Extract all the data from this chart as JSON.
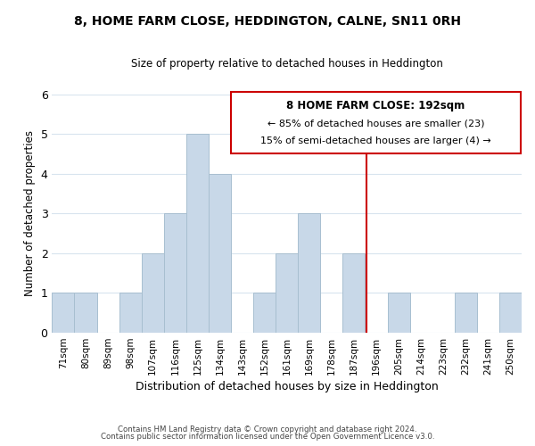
{
  "title": "8, HOME FARM CLOSE, HEDDINGTON, CALNE, SN11 0RH",
  "subtitle": "Size of property relative to detached houses in Heddington",
  "xlabel": "Distribution of detached houses by size in Heddington",
  "ylabel": "Number of detached properties",
  "bin_labels": [
    "71sqm",
    "80sqm",
    "89sqm",
    "98sqm",
    "107sqm",
    "116sqm",
    "125sqm",
    "134sqm",
    "143sqm",
    "152sqm",
    "161sqm",
    "169sqm",
    "178sqm",
    "187sqm",
    "196sqm",
    "205sqm",
    "214sqm",
    "223sqm",
    "232sqm",
    "241sqm",
    "250sqm"
  ],
  "bar_heights": [
    1,
    1,
    0,
    1,
    2,
    3,
    5,
    4,
    0,
    1,
    2,
    3,
    0,
    2,
    0,
    1,
    0,
    0,
    1,
    0,
    1
  ],
  "bar_color": "#c8d8e8",
  "bar_edge_color": "#a8bfd0",
  "reference_line_label": "8 HOME FARM CLOSE: 192sqm",
  "annotation_line1": "← 85% of detached houses are smaller (23)",
  "annotation_line2": "15% of semi-detached houses are larger (4) →",
  "ylim": [
    0,
    6
  ],
  "yticks": [
    0,
    1,
    2,
    3,
    4,
    5,
    6
  ],
  "footer_line1": "Contains HM Land Registry data © Crown copyright and database right 2024.",
  "footer_line2": "Contains public sector information licensed under the Open Government Licence v3.0.",
  "background_color": "#ffffff",
  "grid_color": "#d8e4ee",
  "red_line_color": "#cc0000",
  "box_edge_color": "#cc0000"
}
